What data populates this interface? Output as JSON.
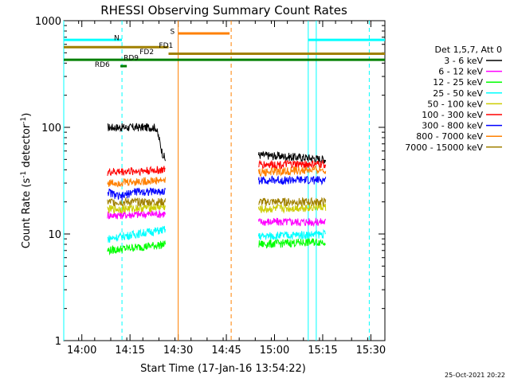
{
  "chart_data": {
    "type": "line",
    "title": "RHESSI Observing Summary Count Rates",
    "xlabel": "Start Time (17-Jan-16 13:54:22)",
    "ylabel_main": "Count Rate (s",
    "ylabel_sup1": "-1",
    "ylabel_mid": " detector",
    "ylabel_sup2": "-1",
    "ylabel_end": ")",
    "yscale": "log",
    "ylim": [
      1,
      1000
    ],
    "xlim": [
      "13:54:22",
      "15:34:22"
    ],
    "x_ticks": [
      "14:00",
      "14:15",
      "14:30",
      "14:45",
      "15:00",
      "15:15",
      "15:30"
    ],
    "y_ticks": [
      "1",
      "10",
      "100",
      "1000"
    ],
    "legend_position": "right",
    "legend_title": "Det 1,5,7, Att 0",
    "series": [
      {
        "name": "3 - 6 keV",
        "color": "#000000",
        "segments": [
          {
            "x": [
              "14:08",
              "14:20",
              "14:23",
              "14:25",
              "14:26"
            ],
            "values": [
              100,
              100,
              100,
              58,
              50
            ]
          },
          {
            "x": [
              "14:55",
              "15:10",
              "15:16"
            ],
            "values": [
              55,
              52,
              50
            ]
          }
        ]
      },
      {
        "name": "6 - 12 keV",
        "color": "#ff00ff",
        "segments": [
          {
            "x": [
              "14:08",
              "14:26"
            ],
            "values": [
              15,
              15.5
            ]
          },
          {
            "x": [
              "14:55",
              "15:16"
            ],
            "values": [
              13,
              13
            ]
          }
        ]
      },
      {
        "name": "12 - 25 keV",
        "color": "#00ff00",
        "segments": [
          {
            "x": [
              "14:08",
              "14:26"
            ],
            "values": [
              7,
              8
            ]
          },
          {
            "x": [
              "14:55",
              "15:16"
            ],
            "values": [
              8,
              8.5
            ]
          }
        ]
      },
      {
        "name": "25 - 50 keV",
        "color": "#00ffff",
        "segments": [
          {
            "x": [
              "14:08",
              "14:26"
            ],
            "values": [
              9,
              11
            ]
          },
          {
            "x": [
              "14:55",
              "15:16"
            ],
            "values": [
              9.5,
              10
            ]
          }
        ]
      },
      {
        "name": "50 - 100 keV",
        "color": "#cccc00",
        "segments": [
          {
            "x": [
              "14:08",
              "14:26"
            ],
            "values": [
              17,
              18
            ]
          },
          {
            "x": [
              "14:55",
              "15:16"
            ],
            "values": [
              17,
              18
            ]
          }
        ]
      },
      {
        "name": "100 - 300 keV",
        "color": "#ff0000",
        "segments": [
          {
            "x": [
              "14:08",
              "14:26"
            ],
            "values": [
              38,
              40
            ]
          },
          {
            "x": [
              "14:55",
              "15:16"
            ],
            "values": [
              45,
              45
            ]
          }
        ]
      },
      {
        "name": "300 - 800 keV",
        "color": "#0000ff",
        "segments": [
          {
            "x": [
              "14:08",
              "14:12",
              "14:16",
              "14:26"
            ],
            "values": [
              25,
              22,
              25,
              25
            ]
          },
          {
            "x": [
              "14:55",
              "15:16"
            ],
            "values": [
              32,
              32
            ]
          }
        ]
      },
      {
        "name": "800 - 7000 keV",
        "color": "#ff8000",
        "segments": [
          {
            "x": [
              "14:08",
              "14:26"
            ],
            "values": [
              30,
              32
            ]
          },
          {
            "x": [
              "14:55",
              "15:16"
            ],
            "values": [
              38,
              40
            ]
          }
        ]
      },
      {
        "name": "7000 - 15000 keV",
        "color": "#a08000",
        "segments": [
          {
            "x": [
              "14:08",
              "14:26"
            ],
            "values": [
              20,
              20
            ]
          },
          {
            "x": [
              "14:55",
              "15:16"
            ],
            "values": [
              20,
              20
            ]
          }
        ]
      }
    ],
    "flags": [
      {
        "label": "N",
        "color": "#00ffff",
        "intervals": [
          [
            "13:54:22",
            "14:12:30"
          ],
          [
            "15:10:30",
            "15:34:22"
          ]
        ],
        "level": 660
      },
      {
        "label": "S",
        "color": "#ff8000",
        "intervals": [
          [
            "14:30",
            "14:46"
          ]
        ],
        "level": 760
      },
      {
        "label": "FD1",
        "color": "#a08000",
        "intervals": [
          [
            "13:54:22",
            "14:27"
          ]
        ],
        "level": 565
      },
      {
        "label": "FD2",
        "color": "#a08000",
        "intervals": [
          [
            "14:27",
            "15:34:22"
          ]
        ],
        "level": 490
      },
      {
        "label": "RD9",
        "color": "#008000",
        "intervals": [
          [
            "13:54:22",
            "15:34:22"
          ]
        ],
        "level": 430
      },
      {
        "label": "RD6",
        "color": "#008000",
        "intervals": [
          [
            "14:12",
            "14:14"
          ]
        ],
        "level": 375
      }
    ],
    "vlines": [
      {
        "x": "13:54:22",
        "color": "#00ffff",
        "style": "solid"
      },
      {
        "x": "14:12:30",
        "color": "#00ffff",
        "style": "dashed"
      },
      {
        "x": "14:30:00",
        "color": "#ff8000",
        "style": "solid"
      },
      {
        "x": "14:46:30",
        "color": "#ff8000",
        "style": "dashed"
      },
      {
        "x": "15:10:30",
        "color": "#00ffff",
        "style": "solid"
      },
      {
        "x": "15:29:30",
        "color": "#00ffff",
        "style": "dashed"
      },
      {
        "x": "15:13:00",
        "color": "#00ffff",
        "style": "solid"
      }
    ],
    "footer_date": "25-Oct-2021 20:22"
  }
}
